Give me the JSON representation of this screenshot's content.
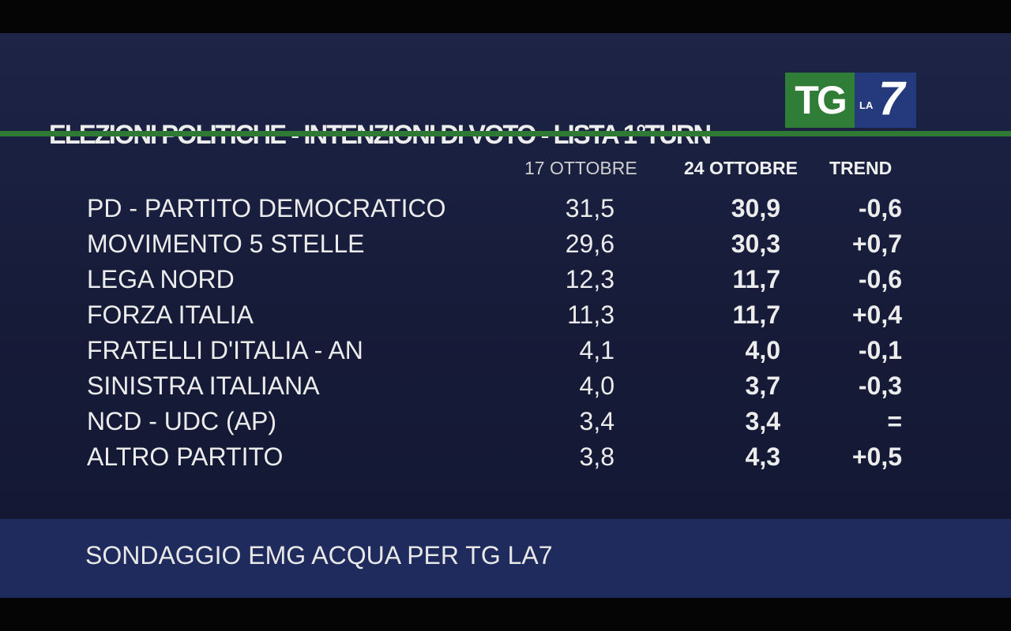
{
  "title": "ELEZIONI POLITICHE - INTENZIONI DI VOTO - LISTA 1°TURN",
  "logo": {
    "tg": "TG",
    "la": "LA",
    "seven": "7"
  },
  "columns": {
    "date1": "17 OTTOBRE",
    "date2": "24 OTTOBRE",
    "trend": "TREND"
  },
  "rows": [
    {
      "party": "PD - PARTITO DEMOCRATICO",
      "v1": "31,5",
      "v2": "30,9",
      "trend": "-0,6"
    },
    {
      "party": "MOVIMENTO 5 STELLE",
      "v1": "29,6",
      "v2": "30,3",
      "trend": "+0,7"
    },
    {
      "party": "LEGA NORD",
      "v1": "12,3",
      "v2": "11,7",
      "trend": "-0,6"
    },
    {
      "party": "FORZA ITALIA",
      "v1": "11,3",
      "v2": "11,7",
      "trend": "+0,4"
    },
    {
      "party": "FRATELLI D'ITALIA - AN",
      "v1": "4,1",
      "v2": "4,0",
      "trend": "-0,1"
    },
    {
      "party": "SINISTRA ITALIANA",
      "v1": "4,0",
      "v2": "3,7",
      "trend": "-0,3"
    },
    {
      "party": "NCD - UDC (AP)",
      "v1": "3,4",
      "v2": "3,4",
      "trend": "="
    },
    {
      "party": "ALTRO PARTITO",
      "v1": "3,8",
      "v2": "4,3",
      "trend": "+0,5"
    }
  ],
  "footer": "SONDAGGIO EMG ACQUA PER TG LA7",
  "colors": {
    "background": "#1a2040",
    "accent_green": "#2e7a34",
    "footer_bg": "#1f2a5d",
    "logo_blue": "#25397d"
  }
}
